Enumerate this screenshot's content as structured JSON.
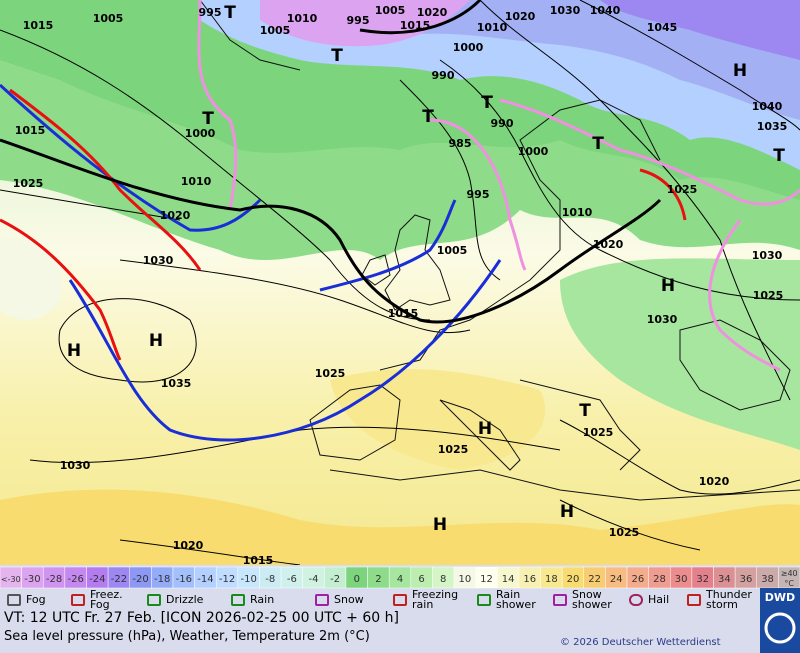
{
  "map": {
    "isobar_labels": [
      "1015",
      "1005",
      "995",
      "1010",
      "995",
      "1005",
      "1015",
      "1020",
      "1020",
      "1030",
      "1040",
      "1045",
      "1005",
      "1000",
      "990",
      "1010",
      "1000",
      "1015",
      "1025",
      "1010",
      "1020",
      "1030",
      "990",
      "985",
      "1000",
      "995",
      "1005",
      "1010",
      "1020",
      "1025",
      "1040",
      "1035",
      "1030",
      "1025",
      "1030",
      "1015",
      "1025",
      "1035",
      "1025",
      "1025",
      "1030",
      "1020",
      "1025",
      "1020",
      "1015"
    ],
    "highs": [
      "H",
      "H",
      "H",
      "H",
      "H",
      "H",
      "H"
    ],
    "lows": [
      "T",
      "T",
      "T",
      "T",
      "T",
      "T",
      "T",
      "T"
    ]
  },
  "temperature_scale": {
    "items": [
      {
        "label": "<-30",
        "color": "#e4b4ee"
      },
      {
        "label": "-30",
        "color": "#dca4f0"
      },
      {
        "label": "-28",
        "color": "#d094f0"
      },
      {
        "label": "-26",
        "color": "#c488f0"
      },
      {
        "label": "-24",
        "color": "#b47cf0"
      },
      {
        "label": "-22",
        "color": "#9c88f0"
      },
      {
        "label": "-20",
        "color": "#8c98f4"
      },
      {
        "label": "-18",
        "color": "#94acf8"
      },
      {
        "label": "-16",
        "color": "#a4c0fc"
      },
      {
        "label": "-14",
        "color": "#b4d0ff"
      },
      {
        "label": "-12",
        "color": "#c0dcff"
      },
      {
        "label": "-10",
        "color": "#c8e6fc"
      },
      {
        "label": "-8",
        "color": "#ccecf4"
      },
      {
        "label": "-6",
        "color": "#d0f0ec"
      },
      {
        "label": "-4",
        "color": "#d0f2e0"
      },
      {
        "label": "-2",
        "color": "#c4eed0"
      },
      {
        "label": "0",
        "color": "#7cd47c"
      },
      {
        "label": "2",
        "color": "#8edc8a"
      },
      {
        "label": "4",
        "color": "#a6e69e"
      },
      {
        "label": "6",
        "color": "#bceeb0"
      },
      {
        "label": "8",
        "color": "#d4f6c6"
      },
      {
        "label": "10",
        "color": "#f4f8e4"
      },
      {
        "label": "12",
        "color": "#fffff0"
      },
      {
        "label": "14",
        "color": "#f8f8d0"
      },
      {
        "label": "16",
        "color": "#f8f0b0"
      },
      {
        "label": "18",
        "color": "#f8e890"
      },
      {
        "label": "20",
        "color": "#f8dc70"
      },
      {
        "label": "22",
        "color": "#f8cc70"
      },
      {
        "label": "24",
        "color": "#f8bc80"
      },
      {
        "label": "26",
        "color": "#f4ac8c"
      },
      {
        "label": "28",
        "color": "#f09c90"
      },
      {
        "label": "30",
        "color": "#ec8c8c"
      },
      {
        "label": "32",
        "color": "#e4808c"
      },
      {
        "label": "34",
        "color": "#dc9094"
      },
      {
        "label": "36",
        "color": "#d4a0a0"
      },
      {
        "label": "38",
        "color": "#ccaaaa"
      },
      {
        "label": "≥40",
        "color": "#c4b4b4"
      }
    ],
    "unit": "°C"
  },
  "weather_legend": [
    "Fog",
    "Freez. Fog",
    "Drizzle",
    "Rain",
    "Snow",
    "Freezing rain",
    "Rain shower",
    "Snow shower",
    "Hail",
    "Thunder storm"
  ],
  "footer": {
    "valid_time": "VT: 12 UTC Fr.  27 Feb. [ICON 2026-02-25  00 UTC + 60 h]",
    "description": "Sea level pressure (hPa), Weather, Temperature 2m (°C)",
    "copyright": "© 2026 Deutscher Wetterdienst",
    "logo": "DWD"
  }
}
